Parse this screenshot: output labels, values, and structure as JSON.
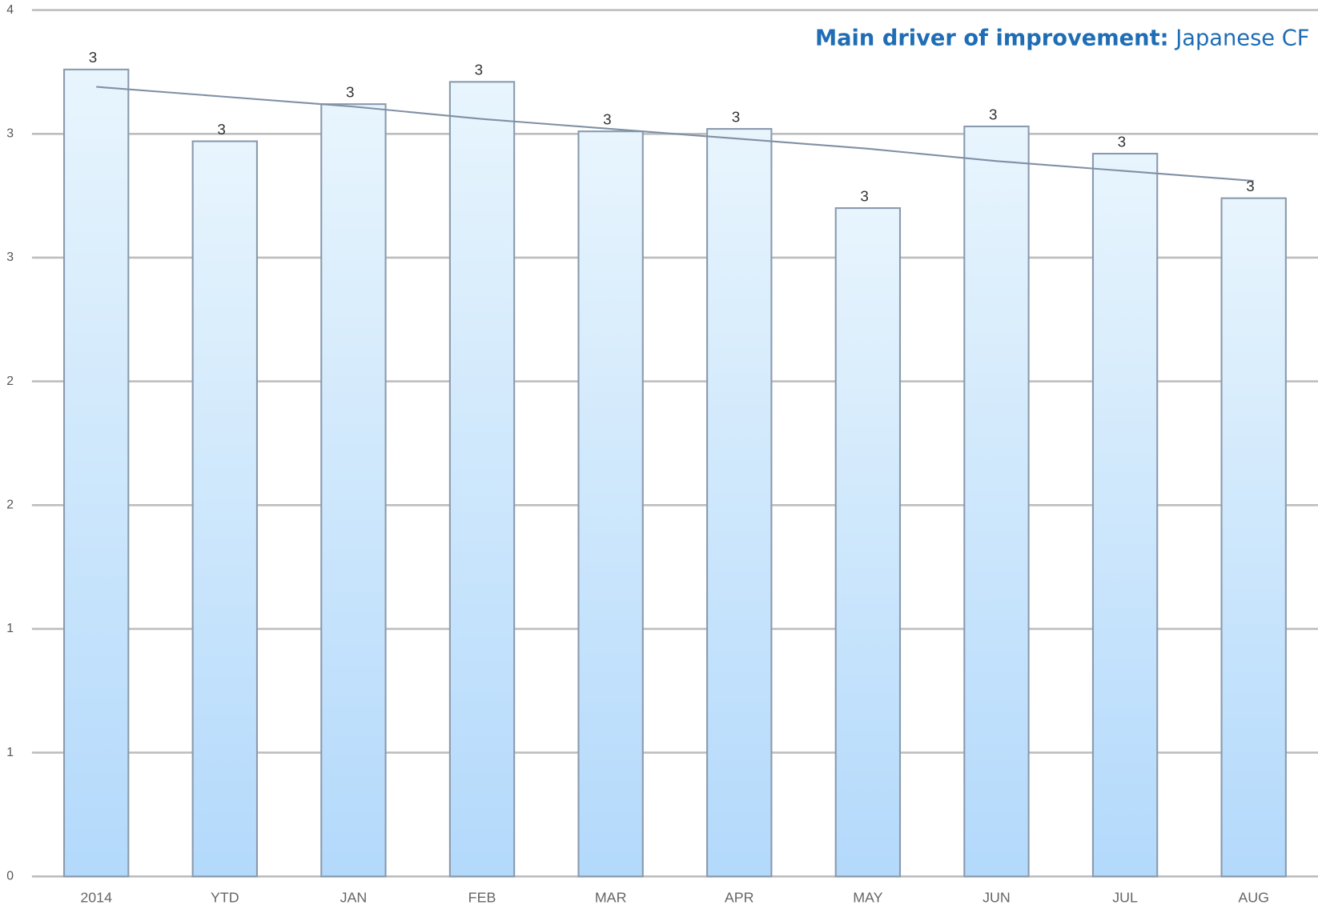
{
  "chart_data": {
    "type": "bar",
    "annotation": {
      "bold": "Main driver of improvement:",
      "text": "Japanese CF"
    },
    "categories": [
      "2014",
      "YTD",
      "JAN",
      "FEB",
      "MAR",
      "APR",
      "MAY",
      "JUN",
      "JUL",
      "AUG"
    ],
    "values": [
      3.26,
      2.97,
      3.12,
      3.21,
      3.01,
      3.02,
      2.7,
      3.03,
      2.92,
      2.74
    ],
    "value_labels": [
      "3",
      "3",
      "3",
      "3",
      "3",
      "3",
      "3",
      "3",
      "3",
      "3"
    ],
    "color": "#b3d9fb",
    "trendline": {
      "color": "#8090a4",
      "values": [
        3.19,
        3.15,
        3.11,
        3.06,
        3.02,
        2.98,
        2.94,
        2.89,
        2.85,
        2.81
      ]
    },
    "ylim": [
      0,
      3.5
    ],
    "yticks": [
      0,
      {
        "value": 0.5,
        "label": "1"
      },
      1,
      {
        "value": 1.5,
        "label": "2"
      },
      2,
      {
        "value": 2.5,
        "label": "3"
      },
      3,
      {
        "value": 3.5,
        "label": "4"
      }
    ],
    "grid": true
  }
}
